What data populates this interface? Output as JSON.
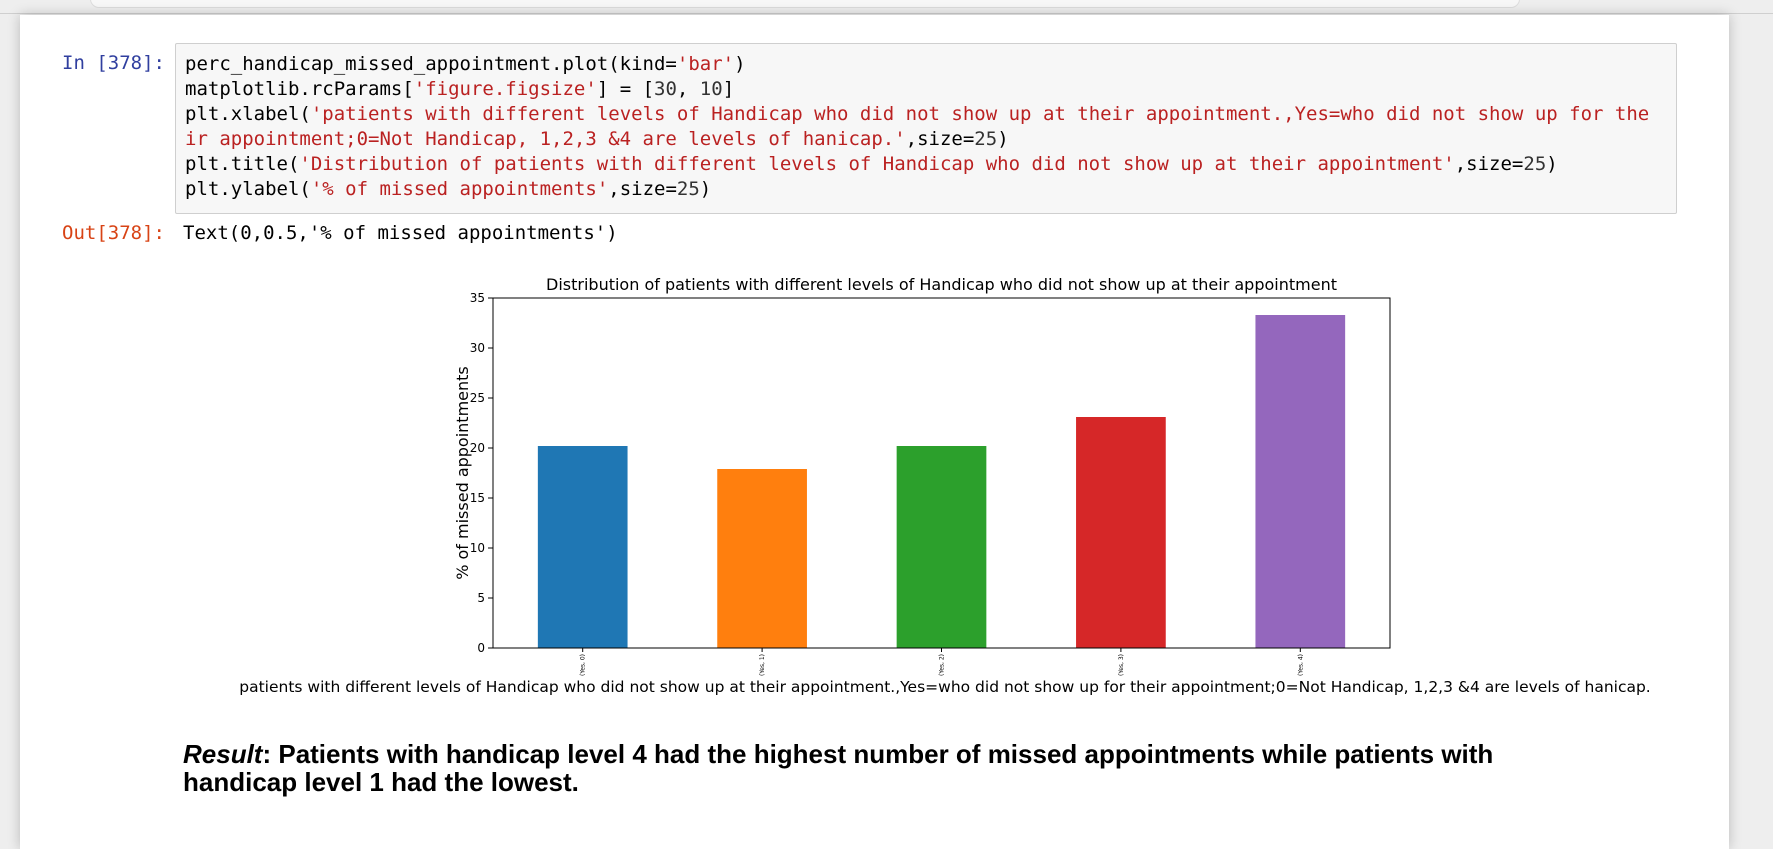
{
  "notebook": {
    "input_prompt": "In [378]:",
    "output_prompt": "Out[378]:",
    "output_text": "Text(0,0.5,'% of missed appointments')",
    "code_lines": [
      [
        {
          "t": "perc_handicap_missed_appointment.plot(kind="
        },
        {
          "t": "'bar'",
          "c": "str"
        },
        {
          "t": ")"
        }
      ],
      [
        {
          "t": "matplotlib.rcParams["
        },
        {
          "t": "'figure.figsize'",
          "c": "str"
        },
        {
          "t": "] = ["
        },
        {
          "t": "30",
          "c": "num2"
        },
        {
          "t": ", "
        },
        {
          "t": "10",
          "c": "num2"
        },
        {
          "t": "]"
        }
      ],
      [
        {
          "t": "plt.xlabel("
        },
        {
          "t": "'patients with different levels of Handicap who did not show up at their appointment.,Yes=who did not show up for the",
          "c": "str"
        }
      ],
      [
        {
          "t": "ir appointment;0=Not Handicap, 1,2,3 &4 are levels of hanicap.'",
          "c": "str"
        },
        {
          "t": ",size="
        },
        {
          "t": "25",
          "c": "num2"
        },
        {
          "t": ")"
        }
      ],
      [
        {
          "t": "plt.title("
        },
        {
          "t": "'Distribution of patients with different levels of Handicap who did not show up at their appointment'",
          "c": "str"
        },
        {
          "t": ",size="
        },
        {
          "t": "25",
          "c": "num2"
        },
        {
          "t": ")"
        }
      ],
      [
        {
          "t": "plt.ylabel("
        },
        {
          "t": "'% of missed appointments'",
          "c": "str"
        },
        {
          "t": ",size="
        },
        {
          "t": "25",
          "c": "num2"
        },
        {
          "t": ")"
        }
      ]
    ],
    "result_label": "Result",
    "result_text": ": Patients with handicap level 4 had the highest number of missed appointments while patients with handicap level 1 had the lowest."
  },
  "chart_data": {
    "type": "bar",
    "title": "Distribution of patients with different levels of Handicap who did not show up at their appointment",
    "xlabel": "patients with different levels of Handicap who did not show up at their appointment.,Yes=who did not show up for their appointment;0=Not Handicap, 1,2,3 &4 are levels of hanicap.",
    "ylabel": "% of missed appointments",
    "categories": [
      "(Yes, 0)",
      "(Yes, 1)",
      "(Yes, 2)",
      "(Yes, 3)",
      "(Yes, 4)"
    ],
    "values": [
      20.2,
      17.9,
      20.2,
      23.1,
      33.3
    ],
    "colors": [
      "#1f77b4",
      "#ff7f0e",
      "#2ca02c",
      "#d62728",
      "#9467bd"
    ],
    "ylim": [
      0,
      35
    ],
    "yticks": [
      0,
      5,
      10,
      15,
      20,
      25,
      30,
      35
    ],
    "grid": false,
    "legend": "none"
  }
}
